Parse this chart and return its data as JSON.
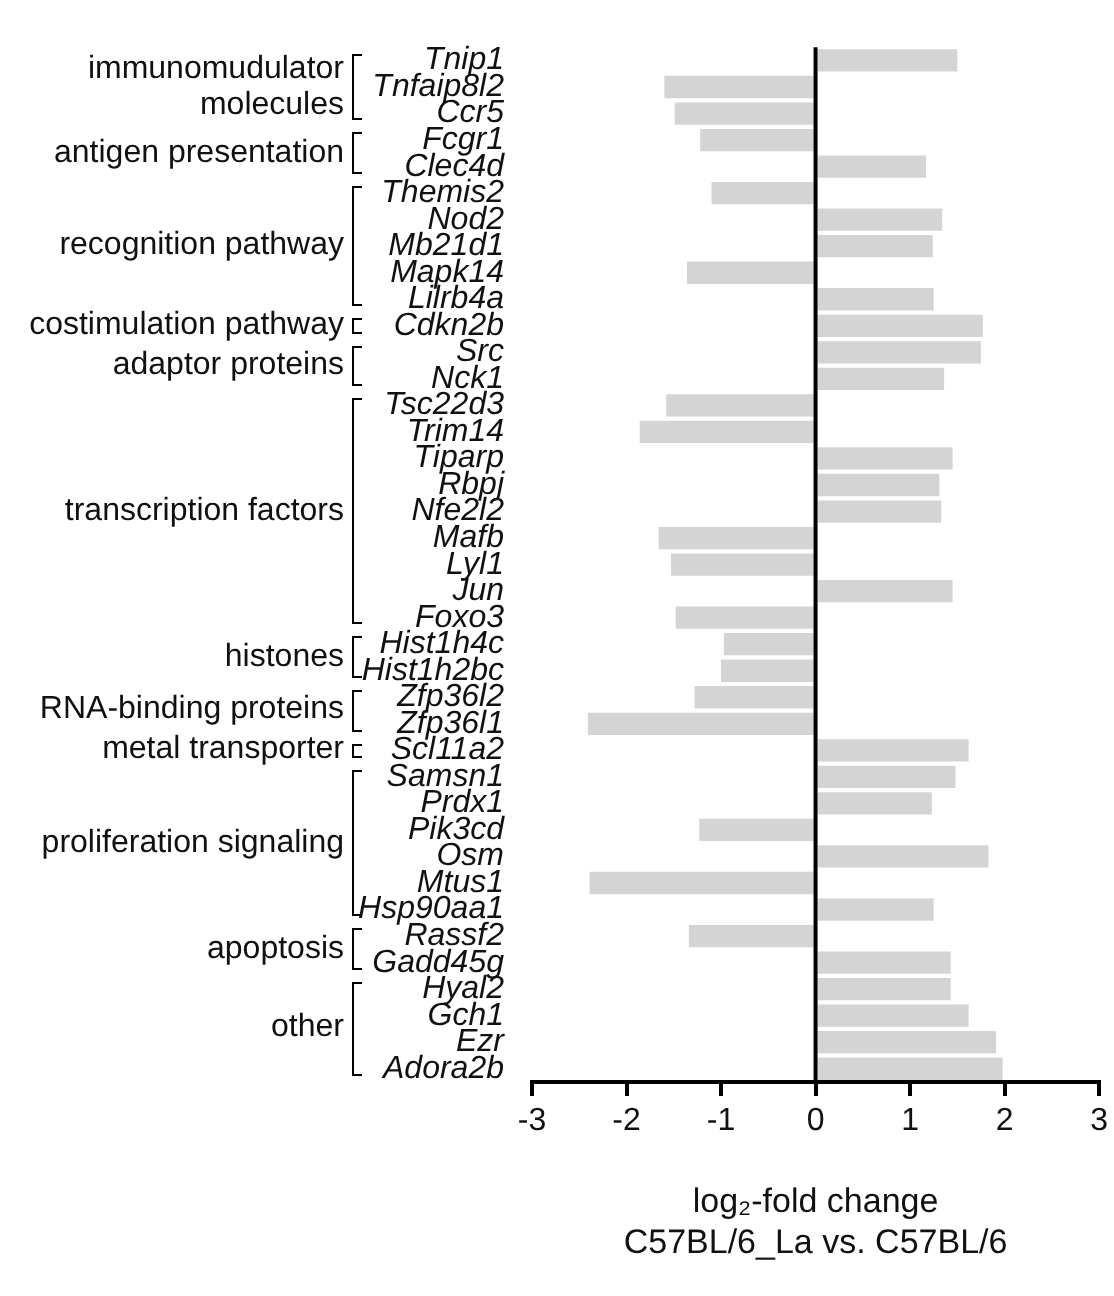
{
  "chart_data": {
    "type": "bar",
    "orientation": "horizontal",
    "categories": [
      "Tnip1",
      "Tnfaip8l2",
      "Ccr5",
      "Fcgr1",
      "Clec4d",
      "Themis2",
      "Nod2",
      "Mb21d1",
      "Mapk14",
      "Lilrb4a",
      "Cdkn2b",
      "Src",
      "Nck1",
      "Tsc22d3",
      "Trim14",
      "Tiparp",
      "Rbpj",
      "Nfe2l2",
      "Mafb",
      "Lyl1",
      "Jun",
      "Foxo3",
      "Hist1h4c",
      "Hist1h2bc",
      "Zfp36l2",
      "Zfp36l1",
      "Scl11a2",
      "Samsn1",
      "Prdx1",
      "Pik3cd",
      "Osm",
      "Mtus1",
      "Hsp90aa1",
      "Rassf2",
      "Gadd45g",
      "Hyal2",
      "Gch1",
      "Ezr",
      "Adora2b"
    ],
    "values": [
      1.5,
      -1.6,
      -1.49,
      -1.22,
      1.17,
      -1.1,
      1.34,
      1.24,
      -1.36,
      1.25,
      1.77,
      1.75,
      1.36,
      -1.58,
      -1.86,
      1.45,
      1.31,
      1.33,
      -1.66,
      -1.53,
      1.45,
      -1.48,
      -0.97,
      -1.0,
      -1.28,
      -2.41,
      1.62,
      1.48,
      1.23,
      -1.23,
      1.83,
      -2.39,
      1.25,
      -1.34,
      1.43,
      1.43,
      1.62,
      1.91,
      1.98
    ],
    "color": "#d4d4d4",
    "xlim": [
      -3,
      3
    ],
    "xticks": [
      -3,
      -2,
      -1,
      0,
      1,
      2,
      3
    ],
    "xlabel": "log₂-fold change\nC57BL/6_La vs. C57BL/6",
    "grid": false,
    "legend": false,
    "ref_lines": [
      {
        "axis": "x",
        "value": 0,
        "color": "#000000"
      }
    ],
    "annotations": [
      "immunomudulator molecules",
      "antigen presentation",
      "recognition pathway",
      "costimulation pathway",
      "adaptor proteins",
      "transcription factors",
      "histones",
      "RNA-binding proteins",
      "metal transporter",
      "proliferation signaling",
      "apoptosis",
      "other"
    ]
  }
}
